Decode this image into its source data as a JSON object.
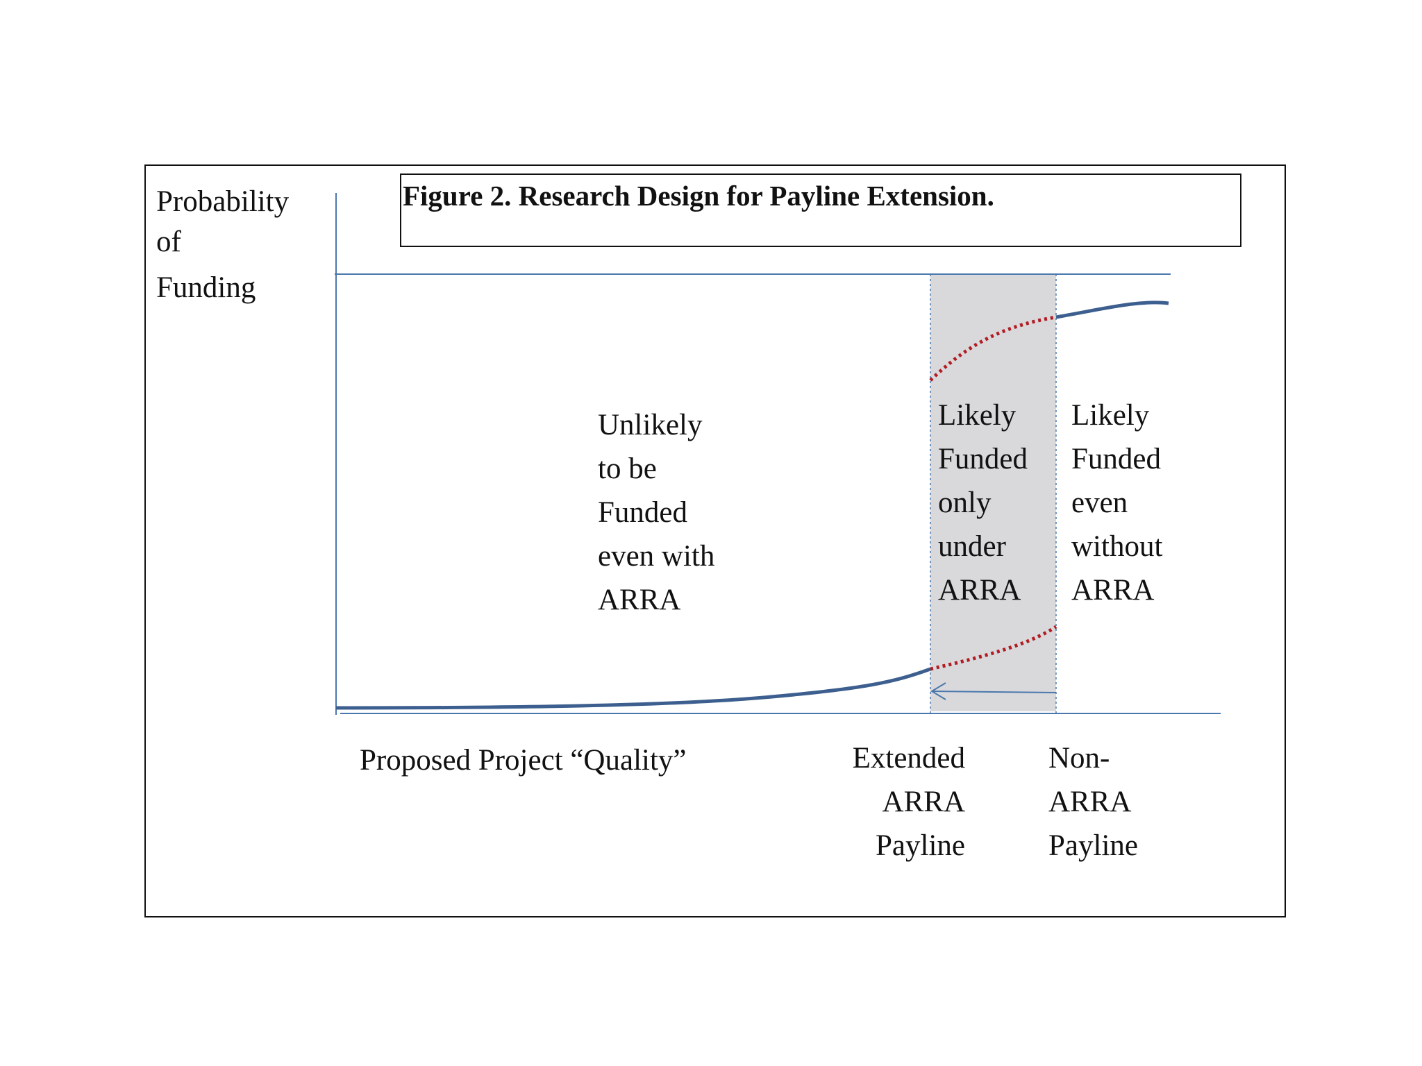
{
  "figure_title": "Figure 2. Research Design for Payline Extension.",
  "y_axis_label": [
    "Probability",
    "of",
    "Funding"
  ],
  "x_axis_label": "Proposed Project  “Quality”",
  "regions": {
    "unlikely": [
      "Unlikely",
      "to be",
      "Funded",
      "even with",
      "ARRA"
    ],
    "only_arra": [
      "Likely",
      "Funded",
      "only",
      "under",
      "ARRA"
    ],
    "without_arra": [
      "Likely",
      "Funded",
      "even",
      "without",
      "ARRA"
    ]
  },
  "paylines": {
    "extended": [
      "Extended",
      "ARRA",
      "Payline"
    ],
    "non_arra": [
      "Non-",
      "ARRA",
      "Payline"
    ]
  },
  "colors": {
    "axis": "#4a78ad",
    "curve": "#3d5f8f",
    "dotted_curve": "#b01c22",
    "shaded_band": "#d9d9dc",
    "border": "#111111"
  }
}
